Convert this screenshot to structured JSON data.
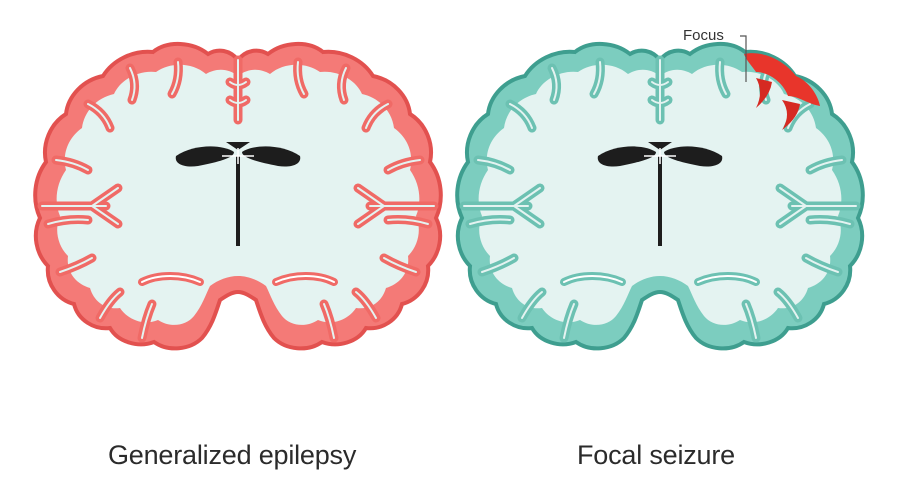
{
  "captions": {
    "generalized": "Generalized epilepsy",
    "focal": "Focal seizure"
  },
  "annotation": {
    "focus_label": "Focus"
  },
  "colors": {
    "background": "#ffffff",
    "white_matter": "#e4f3f1",
    "generalized_cortex": "#f47a77",
    "generalized_cortex_dark": "#e2514f",
    "focal_cortex": "#7ccdbf",
    "focal_cortex_dark": "#3e9e8f",
    "focus_highlight": "#e8352b",
    "ventricle": "#1d1d1d",
    "caption_text": "#2b2b2b"
  },
  "icons": {
    "left_brain": "brain-coronal-section-icon",
    "right_brain": "brain-coronal-section-icon"
  }
}
